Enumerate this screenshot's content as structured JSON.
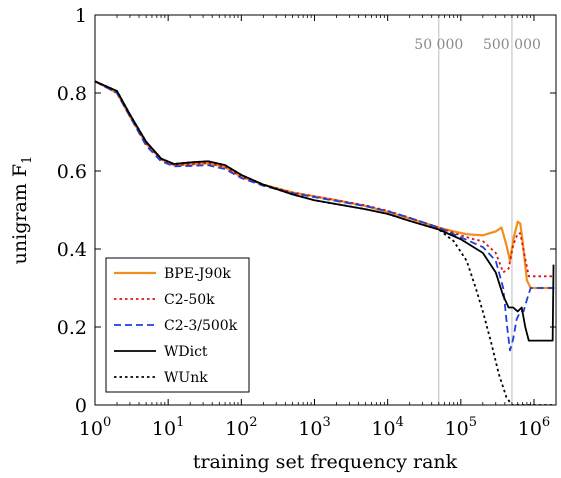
{
  "chart_data": {
    "type": "line",
    "xlabel": "training set frequency rank",
    "ylabel_text": "unigram F",
    "ylabel_sub": "1",
    "x_scale": "log",
    "xlim": [
      1,
      2000000
    ],
    "ylim": [
      0,
      1
    ],
    "x_ticks": [
      {
        "value": 1,
        "base": "10",
        "exp": "0"
      },
      {
        "value": 10,
        "base": "10",
        "exp": "1"
      },
      {
        "value": 100,
        "base": "10",
        "exp": "2"
      },
      {
        "value": 1000,
        "base": "10",
        "exp": "3"
      },
      {
        "value": 10000,
        "base": "10",
        "exp": "4"
      },
      {
        "value": 100000,
        "base": "10",
        "exp": "5"
      },
      {
        "value": 1000000,
        "base": "10",
        "exp": "6"
      }
    ],
    "y_ticks": [
      {
        "value": 0,
        "label": "0"
      },
      {
        "value": 0.2,
        "label": "0.2"
      },
      {
        "value": 0.4,
        "label": "0.4"
      },
      {
        "value": 0.6,
        "label": "0.6"
      },
      {
        "value": 0.8,
        "label": "0.8"
      },
      {
        "value": 1,
        "label": "1"
      }
    ],
    "reference_lines": [
      {
        "x": 50000,
        "label": "50 000",
        "color": "#bdbdbd"
      },
      {
        "x": 500000,
        "label": "500 000",
        "color": "#bdbdbd"
      }
    ],
    "legend_position": "bottom-left",
    "series": [
      {
        "name": "BPE-J90k",
        "color": "#f28e1c",
        "dash": "solid",
        "points": [
          [
            1,
            0.83
          ],
          [
            2,
            0.8
          ],
          [
            3,
            0.74
          ],
          [
            5,
            0.67
          ],
          [
            8,
            0.63
          ],
          [
            12,
            0.615
          ],
          [
            20,
            0.617
          ],
          [
            35,
            0.62
          ],
          [
            60,
            0.61
          ],
          [
            100,
            0.585
          ],
          [
            200,
            0.565
          ],
          [
            500,
            0.545
          ],
          [
            1000,
            0.535
          ],
          [
            2000,
            0.525
          ],
          [
            5000,
            0.51
          ],
          [
            10000,
            0.495
          ],
          [
            20000,
            0.478
          ],
          [
            50000,
            0.455
          ],
          [
            80000,
            0.445
          ],
          [
            120000,
            0.438
          ],
          [
            200000,
            0.435
          ],
          [
            300000,
            0.445
          ],
          [
            360000,
            0.455
          ],
          [
            420000,
            0.41
          ],
          [
            470000,
            0.37
          ],
          [
            530000,
            0.43
          ],
          [
            600000,
            0.47
          ],
          [
            650000,
            0.465
          ],
          [
            700000,
            0.42
          ],
          [
            800000,
            0.32
          ],
          [
            900000,
            0.3
          ],
          [
            1000000,
            0.3
          ],
          [
            1500000,
            0.3
          ],
          [
            1900000,
            0.3
          ]
        ]
      },
      {
        "name": "C2-50k",
        "color": "#dd1111",
        "dash": "dotted",
        "points": [
          [
            1,
            0.83
          ],
          [
            2,
            0.8
          ],
          [
            3,
            0.74
          ],
          [
            5,
            0.67
          ],
          [
            8,
            0.63
          ],
          [
            12,
            0.615
          ],
          [
            20,
            0.617
          ],
          [
            35,
            0.62
          ],
          [
            60,
            0.61
          ],
          [
            100,
            0.585
          ],
          [
            200,
            0.565
          ],
          [
            500,
            0.545
          ],
          [
            1000,
            0.535
          ],
          [
            2000,
            0.525
          ],
          [
            5000,
            0.512
          ],
          [
            10000,
            0.498
          ],
          [
            20000,
            0.48
          ],
          [
            50000,
            0.455
          ],
          [
            100000,
            0.435
          ],
          [
            150000,
            0.425
          ],
          [
            200000,
            0.42
          ],
          [
            300000,
            0.39
          ],
          [
            380000,
            0.34
          ],
          [
            450000,
            0.35
          ],
          [
            520000,
            0.41
          ],
          [
            600000,
            0.44
          ],
          [
            650000,
            0.44
          ],
          [
            750000,
            0.38
          ],
          [
            850000,
            0.33
          ],
          [
            1000000,
            0.33
          ],
          [
            1500000,
            0.33
          ],
          [
            1900000,
            0.33
          ]
        ]
      },
      {
        "name": "C2-3/500k",
        "color": "#1f3fdd",
        "dash": "dashed",
        "points": [
          [
            1,
            0.83
          ],
          [
            2,
            0.8
          ],
          [
            3,
            0.74
          ],
          [
            5,
            0.665
          ],
          [
            8,
            0.625
          ],
          [
            12,
            0.612
          ],
          [
            20,
            0.613
          ],
          [
            35,
            0.615
          ],
          [
            60,
            0.605
          ],
          [
            100,
            0.582
          ],
          [
            200,
            0.562
          ],
          [
            500,
            0.543
          ],
          [
            1000,
            0.533
          ],
          [
            2000,
            0.523
          ],
          [
            5000,
            0.51
          ],
          [
            10000,
            0.497
          ],
          [
            20000,
            0.48
          ],
          [
            50000,
            0.455
          ],
          [
            100000,
            0.43
          ],
          [
            200000,
            0.405
          ],
          [
            300000,
            0.37
          ],
          [
            380000,
            0.3
          ],
          [
            430000,
            0.2
          ],
          [
            470000,
            0.14
          ],
          [
            520000,
            0.17
          ],
          [
            580000,
            0.22
          ],
          [
            650000,
            0.24
          ],
          [
            720000,
            0.24
          ],
          [
            800000,
            0.27
          ],
          [
            900000,
            0.3
          ],
          [
            1200000,
            0.3
          ],
          [
            1900000,
            0.3
          ]
        ]
      },
      {
        "name": "WDict",
        "color": "#000000",
        "dash": "solid",
        "points": [
          [
            1,
            0.83
          ],
          [
            2,
            0.805
          ],
          [
            3,
            0.745
          ],
          [
            5,
            0.675
          ],
          [
            8,
            0.632
          ],
          [
            12,
            0.618
          ],
          [
            20,
            0.622
          ],
          [
            35,
            0.625
          ],
          [
            60,
            0.615
          ],
          [
            100,
            0.59
          ],
          [
            200,
            0.565
          ],
          [
            500,
            0.54
          ],
          [
            1000,
            0.525
          ],
          [
            2000,
            0.515
          ],
          [
            5000,
            0.502
          ],
          [
            10000,
            0.49
          ],
          [
            20000,
            0.472
          ],
          [
            50000,
            0.45
          ],
          [
            100000,
            0.425
          ],
          [
            200000,
            0.39
          ],
          [
            300000,
            0.34
          ],
          [
            380000,
            0.28
          ],
          [
            450000,
            0.25
          ],
          [
            520000,
            0.25
          ],
          [
            600000,
            0.24
          ],
          [
            680000,
            0.25
          ],
          [
            760000,
            0.2
          ],
          [
            850000,
            0.165
          ],
          [
            1000000,
            0.165
          ],
          [
            1500000,
            0.165
          ],
          [
            1800000,
            0.165
          ],
          [
            1850000,
            0.36
          ]
        ]
      },
      {
        "name": "WUnk",
        "color": "#000000",
        "dash": "dotted",
        "points": [
          [
            1,
            0.83
          ],
          [
            2,
            0.805
          ],
          [
            3,
            0.745
          ],
          [
            5,
            0.675
          ],
          [
            8,
            0.632
          ],
          [
            12,
            0.618
          ],
          [
            20,
            0.622
          ],
          [
            35,
            0.625
          ],
          [
            60,
            0.615
          ],
          [
            100,
            0.59
          ],
          [
            200,
            0.565
          ],
          [
            500,
            0.54
          ],
          [
            1000,
            0.525
          ],
          [
            2000,
            0.515
          ],
          [
            5000,
            0.502
          ],
          [
            10000,
            0.49
          ],
          [
            20000,
            0.472
          ],
          [
            50000,
            0.45
          ],
          [
            80000,
            0.42
          ],
          [
            120000,
            0.37
          ],
          [
            160000,
            0.3
          ],
          [
            200000,
            0.24
          ],
          [
            260000,
            0.16
          ],
          [
            330000,
            0.08
          ],
          [
            420000,
            0.02
          ],
          [
            500000,
            0.0
          ],
          [
            1000000,
            0.0
          ],
          [
            1900000,
            0.0
          ]
        ]
      }
    ]
  }
}
